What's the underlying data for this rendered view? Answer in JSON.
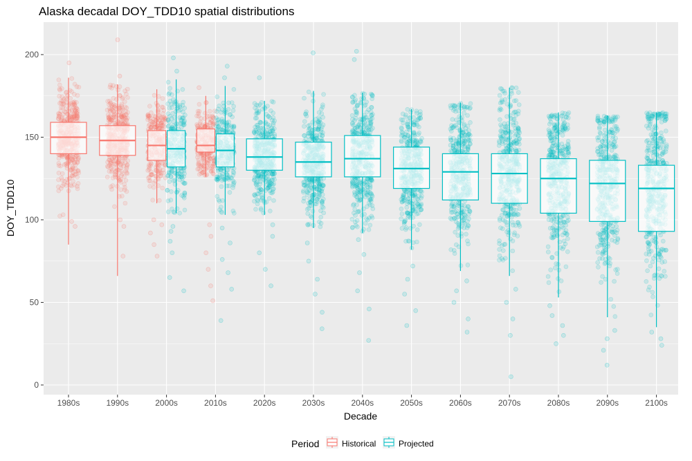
{
  "chart_data": {
    "type": "box",
    "title": "Alaska decadal DOY_TDD10 spatial distributions",
    "xlabel": "Decade",
    "ylabel": "DOY_TDD10",
    "ylim": [
      -5,
      220
    ],
    "yticks": [
      0,
      50,
      100,
      150,
      200
    ],
    "grid": true,
    "legend": {
      "title": "Period",
      "position": "bottom",
      "entries": [
        {
          "label": "Historical",
          "color": "#F8766D"
        },
        {
          "label": "Projected",
          "color": "#00BFC4"
        }
      ]
    },
    "categories": [
      "1980s",
      "1990s",
      "2000s",
      "2010s",
      "2020s",
      "2030s",
      "2040s",
      "2050s",
      "2060s",
      "2070s",
      "2080s",
      "2090s",
      "2100s"
    ],
    "boxes": [
      {
        "category": "1980s",
        "period": "Historical",
        "min": 85,
        "q1": 140,
        "median": 150,
        "q3": 159,
        "max": 186,
        "outliers": [
          96,
          99,
          195
        ]
      },
      {
        "category": "1990s",
        "period": "Historical",
        "min": 66,
        "q1": 139,
        "median": 148,
        "q3": 157,
        "max": 182,
        "outliers": [
          78,
          96,
          100,
          187,
          209
        ]
      },
      {
        "category": "2000s",
        "period": "Historical",
        "min": 110,
        "q1": 136,
        "median": 145,
        "q3": 154,
        "max": 179,
        "outliers": [
          78,
          85,
          92,
          97,
          100
        ]
      },
      {
        "category": "2000s",
        "period": "Projected",
        "min": 104,
        "q1": 132,
        "median": 143,
        "q3": 154,
        "max": 185,
        "outliers": [
          57,
          65,
          80,
          87,
          93,
          96,
          190,
          198
        ]
      },
      {
        "category": "2010s",
        "period": "Historical",
        "min": 126,
        "q1": 141,
        "median": 145,
        "q3": 155,
        "max": 175,
        "outliers": [
          51,
          60,
          70,
          80,
          90,
          97,
          180
        ]
      },
      {
        "category": "2010s",
        "period": "Projected",
        "min": 103,
        "q1": 132,
        "median": 142,
        "q3": 152,
        "max": 181,
        "outliers": [
          39,
          58,
          68,
          76,
          86,
          95,
          186,
          193
        ]
      },
      {
        "category": "2020s",
        "period": "Projected",
        "min": 103,
        "q1": 130,
        "median": 138,
        "q3": 149,
        "max": 172,
        "outliers": [
          60,
          70,
          80,
          90,
          97,
          186
        ]
      },
      {
        "category": "2030s",
        "period": "Projected",
        "min": 95,
        "q1": 126,
        "median": 135,
        "q3": 147,
        "max": 178,
        "outliers": [
          34,
          44,
          55,
          64,
          75,
          86,
          201
        ]
      },
      {
        "category": "2040s",
        "period": "Projected",
        "min": 92,
        "q1": 126,
        "median": 137,
        "q3": 151,
        "max": 177,
        "outliers": [
          27,
          46,
          57,
          68,
          79,
          88,
          197,
          202
        ]
      },
      {
        "category": "2050s",
        "period": "Projected",
        "min": 82,
        "q1": 119,
        "median": 131,
        "q3": 144,
        "max": 167,
        "outliers": [
          36,
          45,
          55,
          64,
          72
        ]
      },
      {
        "category": "2060s",
        "period": "Projected",
        "min": 69,
        "q1": 112,
        "median": 129,
        "q3": 140,
        "max": 171,
        "outliers": [
          32,
          40,
          50,
          57,
          63
        ]
      },
      {
        "category": "2070s",
        "period": "Projected",
        "min": 66,
        "q1": 110,
        "median": 128,
        "q3": 140,
        "max": 180,
        "outliers": [
          5,
          30,
          40,
          50,
          58
        ]
      },
      {
        "category": "2080s",
        "period": "Projected",
        "min": 53,
        "q1": 104,
        "median": 125,
        "q3": 137,
        "max": 165,
        "outliers": [
          25,
          30,
          36,
          42,
          48
        ]
      },
      {
        "category": "2090s",
        "period": "Projected",
        "min": 41,
        "q1": 99,
        "median": 122,
        "q3": 136,
        "max": 163,
        "outliers": [
          12,
          21,
          28,
          33
        ]
      },
      {
        "category": "2100s",
        "period": "Projected",
        "min": 35,
        "q1": 93,
        "median": 119,
        "q3": 133,
        "max": 165,
        "outliers": [
          24,
          28,
          32
        ]
      }
    ]
  }
}
